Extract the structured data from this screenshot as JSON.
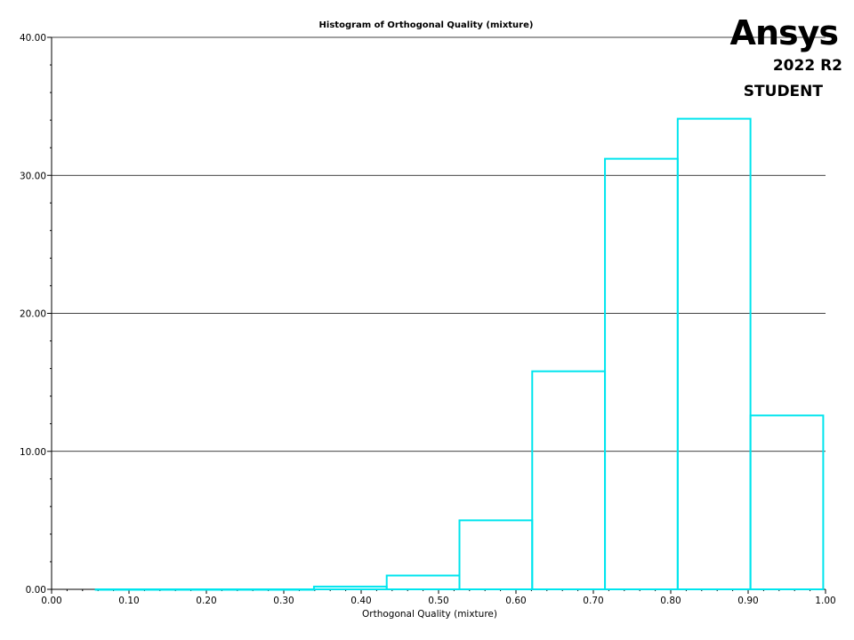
{
  "logo": {
    "brand": "Ansys",
    "version": "2022 R2",
    "edition": "STUDENT"
  },
  "chart_data": {
    "type": "bar",
    "title": "Histogram of Orthogonal Quality (mixture)",
    "xlabel": "Orthogonal Quality (mixture)",
    "ylabel": "",
    "xlim": [
      0,
      1
    ],
    "ylim": [
      0,
      40
    ],
    "x_ticks": [
      "0.00",
      "0.10",
      "0.20",
      "0.30",
      "0.40",
      "0.50",
      "0.60",
      "0.70",
      "0.80",
      "0.90",
      "1.00"
    ],
    "y_ticks": [
      "0.00",
      "10.00",
      "20.00",
      "30.00",
      "40.00"
    ],
    "grid": true,
    "bar_color": "#00e5ee",
    "bins": [
      {
        "x0": 0.057,
        "x1": 0.151,
        "value": 0.0
      },
      {
        "x0": 0.151,
        "x1": 0.245,
        "value": 0.0
      },
      {
        "x0": 0.245,
        "x1": 0.339,
        "value": 0.0
      },
      {
        "x0": 0.339,
        "x1": 0.433,
        "value": 0.2
      },
      {
        "x0": 0.433,
        "x1": 0.527,
        "value": 1.0
      },
      {
        "x0": 0.527,
        "x1": 0.621,
        "value": 5.0
      },
      {
        "x0": 0.621,
        "x1": 0.715,
        "value": 15.8
      },
      {
        "x0": 0.715,
        "x1": 0.809,
        "value": 31.2
      },
      {
        "x0": 0.809,
        "x1": 0.903,
        "value": 34.1
      },
      {
        "x0": 0.903,
        "x1": 0.997,
        "value": 12.6
      }
    ]
  }
}
